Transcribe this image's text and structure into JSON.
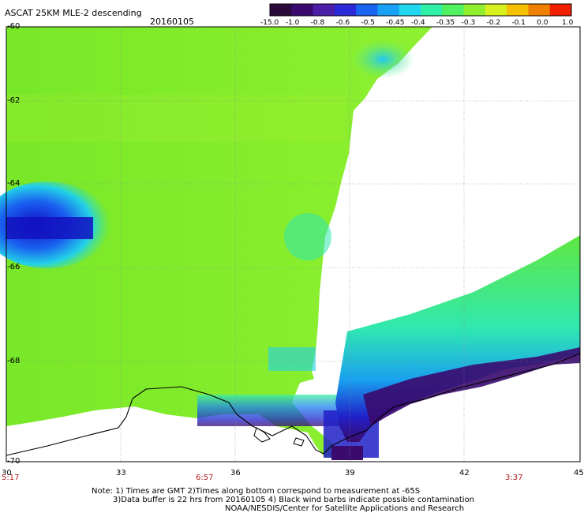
{
  "header": {
    "title": "ASCAT 25KM MLE-2 descending",
    "date": "20160105"
  },
  "colorbar": {
    "labels": [
      "-15.0",
      "-1.0",
      "-0.8",
      "-0.6",
      "-0.5",
      "-0.45",
      "-0.4",
      "-0.35",
      "-0.3",
      "-0.2",
      "-0.1",
      "0.0",
      "1.0"
    ],
    "colors": [
      "#2a0a3a",
      "#3a0a6e",
      "#4b1fa8",
      "#2a2ad8",
      "#1a64f0",
      "#1aa0f5",
      "#22d8f0",
      "#30f0a8",
      "#50f060",
      "#90f030",
      "#d8f020",
      "#f5c000",
      "#f08000",
      "#f02000"
    ]
  },
  "map": {
    "lat_labels": [
      "-60",
      "-62",
      "-64",
      "-66",
      "-68",
      "-70"
    ],
    "lon_labels": [
      "30",
      "33",
      "36",
      "39",
      "42",
      "45"
    ],
    "time_labels": [
      "5:17",
      "6:57",
      "3:37"
    ]
  },
  "footer": {
    "line1": "Note: 1) Times are GMT 2)Times along bottom correspond to measurement at -65S",
    "line2": "3)Data buffer is 22 hrs from 20160105 4) Black wind barbs indicate possible contamination",
    "line3": "NOAA/NESDIS/Center for Satellite Applications and Research"
  }
}
